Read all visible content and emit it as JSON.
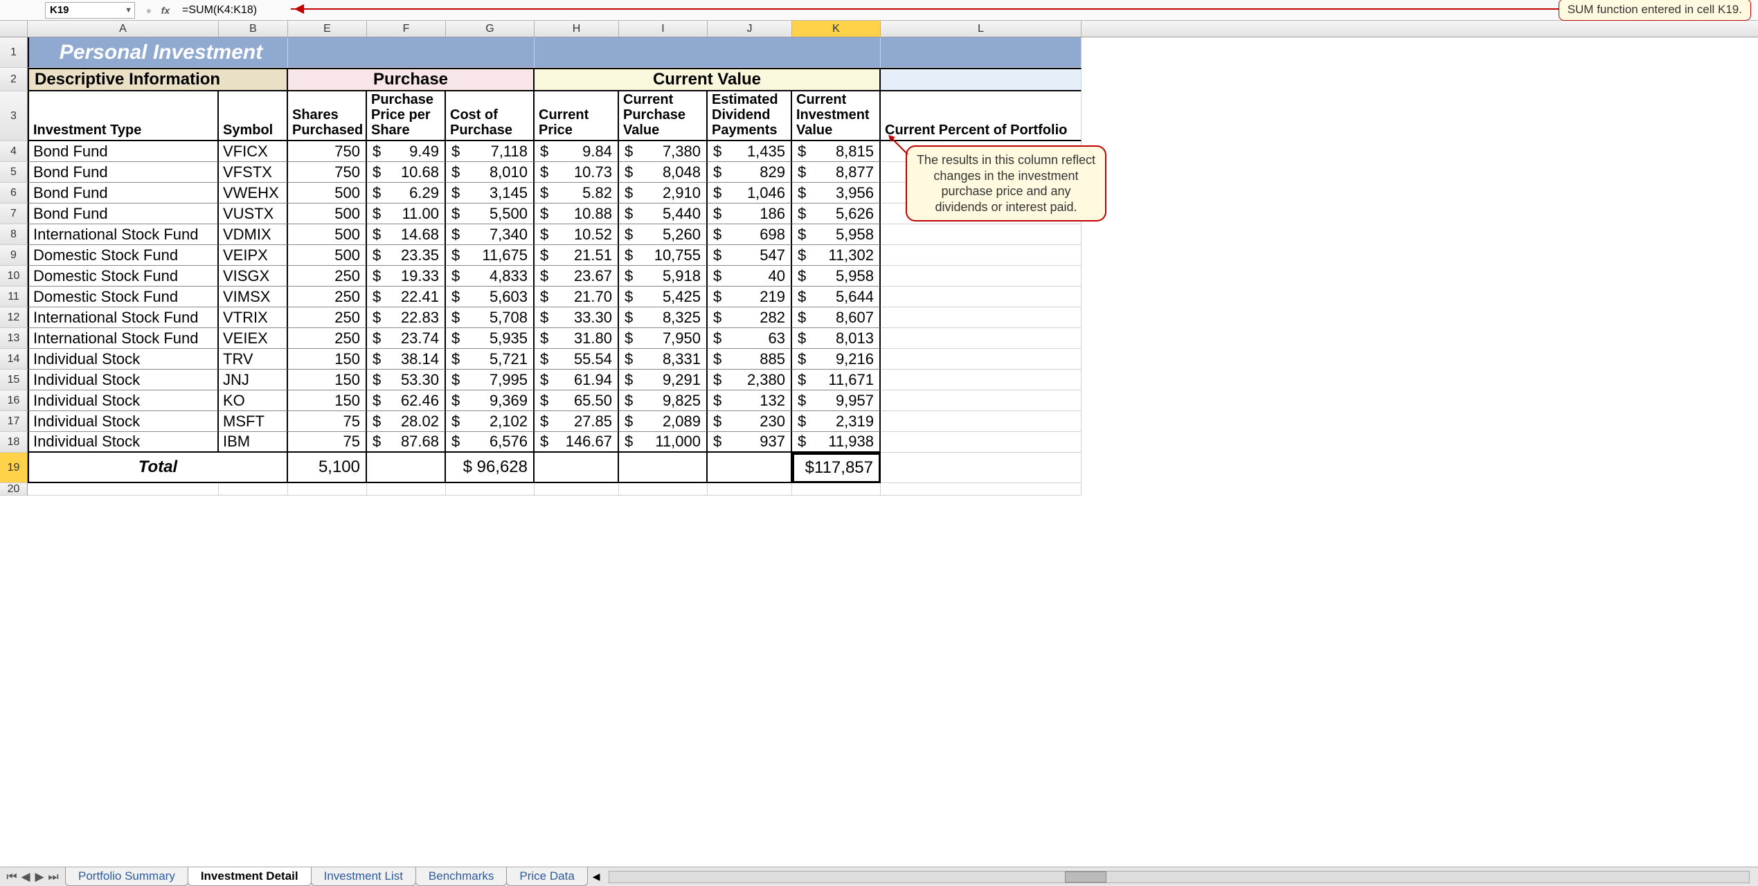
{
  "formula_bar": {
    "name_box": "K19",
    "formula": "=SUM(K4:K18)"
  },
  "callout1": "SUM function entered in cell K19.",
  "callout2": "The results in this column reflect changes in the investment purchase price and any dividends or interest paid.",
  "columns": [
    "A",
    "B",
    "E",
    "F",
    "G",
    "H",
    "I",
    "J",
    "K",
    "L"
  ],
  "title": "Personal Investment",
  "section_headers": {
    "descriptive": "Descriptive Information",
    "purchase": "Purchase",
    "current": "Current Value"
  },
  "sub_headers": {
    "A": "Investment Type",
    "B": "Symbol",
    "E": "Shares Purchased",
    "F": "Purchase Price per Share",
    "G": "Cost of Purchase",
    "H": "Current Price",
    "I": "Current Purchase Value",
    "J": "Estimated Dividend Payments",
    "K": "Current Investment Value",
    "L": "Current Percent of Portfolio"
  },
  "rows": [
    {
      "n": 4,
      "type": "Bond Fund",
      "sym": "VFICX",
      "shares": "750",
      "pps": "9.49",
      "cost": "7,118",
      "price": "9.84",
      "cpv": "7,380",
      "div": "1,435",
      "civ": "8,815"
    },
    {
      "n": 5,
      "type": "Bond Fund",
      "sym": "VFSTX",
      "shares": "750",
      "pps": "10.68",
      "cost": "8,010",
      "price": "10.73",
      "cpv": "8,048",
      "div": "829",
      "civ": "8,877"
    },
    {
      "n": 6,
      "type": "Bond Fund",
      "sym": "VWEHX",
      "shares": "500",
      "pps": "6.29",
      "cost": "3,145",
      "price": "5.82",
      "cpv": "2,910",
      "div": "1,046",
      "civ": "3,956"
    },
    {
      "n": 7,
      "type": "Bond Fund",
      "sym": "VUSTX",
      "shares": "500",
      "pps": "11.00",
      "cost": "5,500",
      "price": "10.88",
      "cpv": "5,440",
      "div": "186",
      "civ": "5,626"
    },
    {
      "n": 8,
      "type": "International Stock Fund",
      "sym": "VDMIX",
      "shares": "500",
      "pps": "14.68",
      "cost": "7,340",
      "price": "10.52",
      "cpv": "5,260",
      "div": "698",
      "civ": "5,958"
    },
    {
      "n": 9,
      "type": "Domestic Stock Fund",
      "sym": "VEIPX",
      "shares": "500",
      "pps": "23.35",
      "cost": "11,675",
      "price": "21.51",
      "cpv": "10,755",
      "div": "547",
      "civ": "11,302"
    },
    {
      "n": 10,
      "type": "Domestic Stock Fund",
      "sym": "VISGX",
      "shares": "250",
      "pps": "19.33",
      "cost": "4,833",
      "price": "23.67",
      "cpv": "5,918",
      "div": "40",
      "civ": "5,958"
    },
    {
      "n": 11,
      "type": "Domestic Stock Fund",
      "sym": "VIMSX",
      "shares": "250",
      "pps": "22.41",
      "cost": "5,603",
      "price": "21.70",
      "cpv": "5,425",
      "div": "219",
      "civ": "5,644"
    },
    {
      "n": 12,
      "type": "International Stock Fund",
      "sym": "VTRIX",
      "shares": "250",
      "pps": "22.83",
      "cost": "5,708",
      "price": "33.30",
      "cpv": "8,325",
      "div": "282",
      "civ": "8,607"
    },
    {
      "n": 13,
      "type": "International Stock Fund",
      "sym": "VEIEX",
      "shares": "250",
      "pps": "23.74",
      "cost": "5,935",
      "price": "31.80",
      "cpv": "7,950",
      "div": "63",
      "civ": "8,013"
    },
    {
      "n": 14,
      "type": "Individual Stock",
      "sym": "TRV",
      "shares": "150",
      "pps": "38.14",
      "cost": "5,721",
      "price": "55.54",
      "cpv": "8,331",
      "div": "885",
      "civ": "9,216"
    },
    {
      "n": 15,
      "type": "Individual Stock",
      "sym": "JNJ",
      "shares": "150",
      "pps": "53.30",
      "cost": "7,995",
      "price": "61.94",
      "cpv": "9,291",
      "div": "2,380",
      "civ": "11,671"
    },
    {
      "n": 16,
      "type": "Individual Stock",
      "sym": "KO",
      "shares": "150",
      "pps": "62.46",
      "cost": "9,369",
      "price": "65.50",
      "cpv": "9,825",
      "div": "132",
      "civ": "9,957"
    },
    {
      "n": 17,
      "type": "Individual Stock",
      "sym": "MSFT",
      "shares": "75",
      "pps": "28.02",
      "cost": "2,102",
      "price": "27.85",
      "cpv": "2,089",
      "div": "230",
      "civ": "2,319"
    },
    {
      "n": 18,
      "type": "Individual Stock",
      "sym": "IBM",
      "shares": "75",
      "pps": "87.68",
      "cost": "6,576",
      "price": "146.67",
      "cpv": "11,000",
      "div": "937",
      "civ": "11,938"
    }
  ],
  "totals": {
    "label": "Total",
    "shares": "5,100",
    "cost": "$ 96,628",
    "civ": "$117,857"
  },
  "tabs": {
    "list": [
      "Portfolio Summary",
      "Investment Detail",
      "Investment List",
      "Benchmarks",
      "Price Data"
    ],
    "active": 1
  },
  "colors": {
    "title_bg": "#8fa9d0",
    "desc_bg": "#e9e0c6",
    "purchase_bg": "#f9e6e9",
    "current_bg": "#f9f8dc",
    "rest_bg": "#e6eff9",
    "selected": "#ffd24a",
    "callout_bg": "#fffadf",
    "callout_border": "#c00000"
  },
  "col_widths": {
    "A": 276,
    "B": 100,
    "E": 114,
    "F": 114,
    "G": 128,
    "H": 122,
    "I": 128,
    "J": 122,
    "K": 128,
    "L": 290
  }
}
